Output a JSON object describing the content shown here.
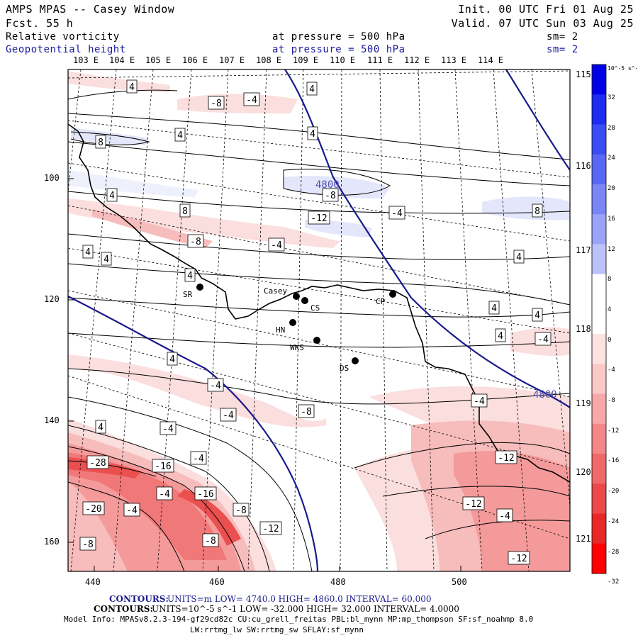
{
  "header": {
    "model": "AMPS MPAS -- Casey Window",
    "forecast": "Fcst.   55 h",
    "init": "Init. 00 UTC Fri 01 Aug 25",
    "valid": "Valid. 07 UTC Sun 03 Aug 25",
    "field1": "Relative vorticity",
    "field1_level": "at pressure =  500 hPa",
    "field1_smooth": "sm= 2",
    "field2": "Geopotential height",
    "field2_level": "at pressure =  500 hPa",
    "field2_smooth": "sm= 2"
  },
  "top_longitudes": [
    "103 E",
    "104 E",
    "105 E",
    "106 E",
    "107 E",
    "108 E",
    "109 E",
    "110 E",
    "111 E",
    "112 E",
    "113 E",
    "114 E"
  ],
  "right_longitudes": [
    "115 E",
    "116 E",
    "117 E",
    "118 E",
    "119 E",
    "120 E",
    "121 E"
  ],
  "y_axis": [
    "100",
    "120",
    "140",
    "160"
  ],
  "x_axis": [
    "440",
    "460",
    "480",
    "500"
  ],
  "stations": [
    {
      "name": "SR"
    },
    {
      "name": "Casey"
    },
    {
      "name": "CS"
    },
    {
      "name": "CP"
    },
    {
      "name": "HN"
    },
    {
      "name": "WKS"
    },
    {
      "name": "DS"
    }
  ],
  "height_labels": [
    "4800",
    "4800"
  ],
  "vorticity_labels": [
    "4",
    "-8",
    "-4",
    "4",
    "8",
    "4",
    "4",
    "4",
    "-4",
    "8",
    "4",
    "8",
    "4",
    "-8",
    "-4",
    "4",
    "4",
    "4",
    "4",
    "4",
    "-4",
    "4",
    "-4",
    "-8",
    "-4",
    "-8",
    "-4",
    "4",
    "-4",
    "-4",
    "-28",
    "-16",
    "-4",
    "-16",
    "-20",
    "-4",
    "-8",
    "-12",
    "-8",
    "-12",
    "-12",
    "-4",
    "-8",
    "-12",
    "-12"
  ],
  "colorbar": {
    "unit": "10^-5 s^-1",
    "ticks": [
      "32",
      "28",
      "24",
      "20",
      "16",
      "12",
      "8",
      "4",
      "0",
      "-4",
      "-8",
      "-12",
      "-16",
      "-20",
      "-24",
      "-28",
      "-32"
    ]
  },
  "footer": {
    "line1_label": "CONTOURS:",
    "line1": "UNITS=m  LOW=  4740.0        HIGH= 4860.0        INTERVAL=   60.000",
    "line2_label": "CONTOURS:",
    "line2": "UNITS=10^-5 s^-1  LOW= -32.000      HIGH=  32.000      INTERVAL=   4.0000",
    "model_info": "Model Info: MPASv8.2.3-194-gf29cd82c CU:cu_grell_freitas PBL:bl_mynn MP:mp_thompson SF:sf_noahmp 8.0",
    "model_info2": "LW:rrtmg_lw SW:rrtmg_sw SFLAY:sf_mynn"
  }
}
